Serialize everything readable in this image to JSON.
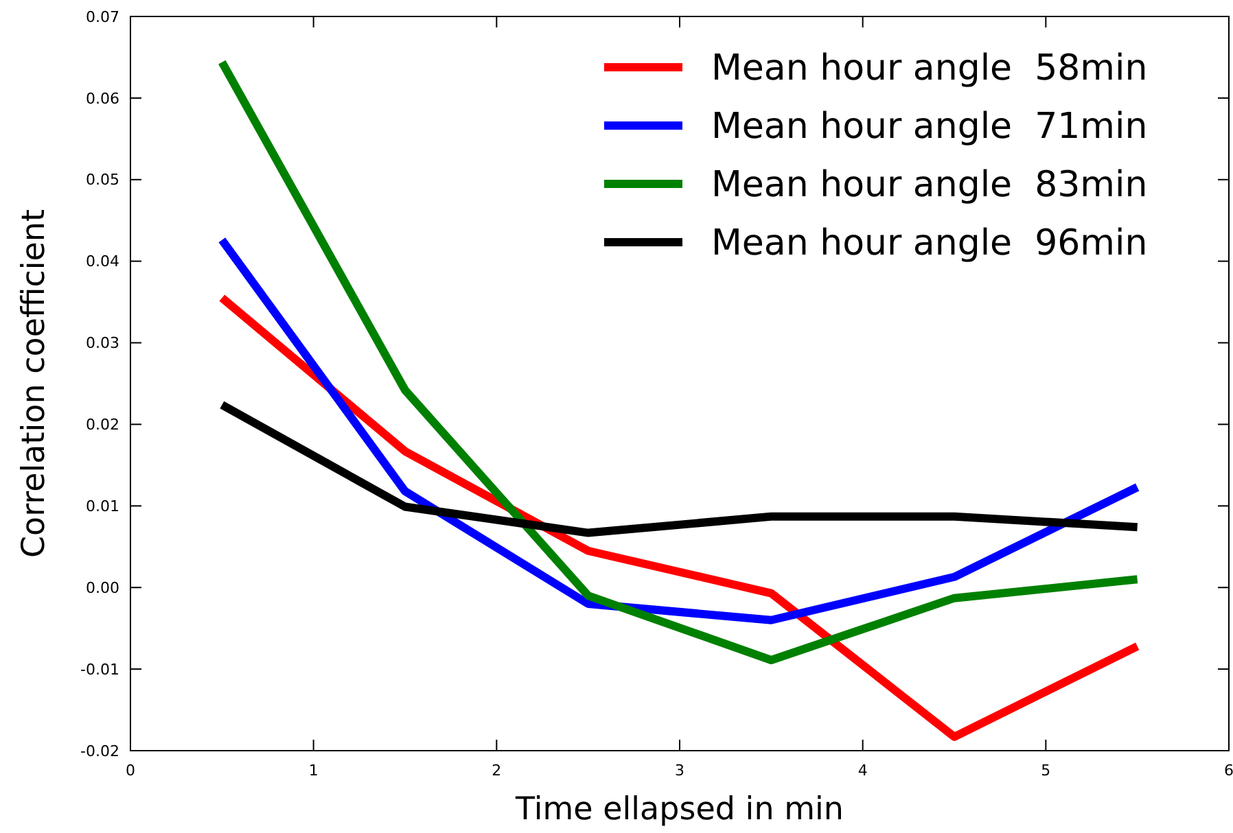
{
  "chart_data": {
    "type": "line",
    "xlabel": "Time ellapsed in min",
    "ylabel": "Correlation coefficient",
    "x": [
      0.5,
      1.5,
      2.5,
      3.5,
      4.5,
      5.5
    ],
    "series": [
      {
        "name": "Mean hour angle  58min",
        "color": "#ff0000",
        "values": [
          0.0355,
          0.0167,
          0.0045,
          -0.0007,
          -0.0183,
          -0.0072
        ]
      },
      {
        "name": "Mean hour angle  71min",
        "color": "#0000ff",
        "values": [
          0.0426,
          0.0118,
          -0.002,
          -0.004,
          0.0013,
          0.0123
        ]
      },
      {
        "name": "Mean hour angle  83min",
        "color": "#008000",
        "values": [
          0.0644,
          0.0242,
          -0.001,
          -0.0089,
          -0.0013,
          0.001
        ]
      },
      {
        "name": "Mean hour angle  96min",
        "color": "#000000",
        "values": [
          0.0224,
          0.0099,
          0.0067,
          0.0087,
          0.0087,
          0.0074
        ]
      }
    ],
    "xlim": [
      0,
      6
    ],
    "xticks": [
      0,
      1,
      2,
      3,
      4,
      5,
      6
    ],
    "ylim": [
      -0.02,
      0.07
    ],
    "yticks": [
      {
        "value": -0.02,
        "label": "-0.02"
      },
      {
        "value": -0.01,
        "label": "-0.01"
      },
      {
        "value": 0,
        "label": "0.00"
      },
      {
        "value": 0.01,
        "label": "0.01"
      },
      {
        "value": 0.02,
        "label": "0.02"
      },
      {
        "value": 0.03,
        "label": "0.03"
      },
      {
        "value": 0.04,
        "label": "0.04"
      },
      {
        "value": 0.05,
        "label": "0.05"
      },
      {
        "value": 0.06,
        "label": "0.06"
      },
      {
        "value": 0.07,
        "label": "0.07"
      }
    ],
    "legend": "top right",
    "grid": false,
    "marker": "none",
    "line_style": "solid"
  }
}
